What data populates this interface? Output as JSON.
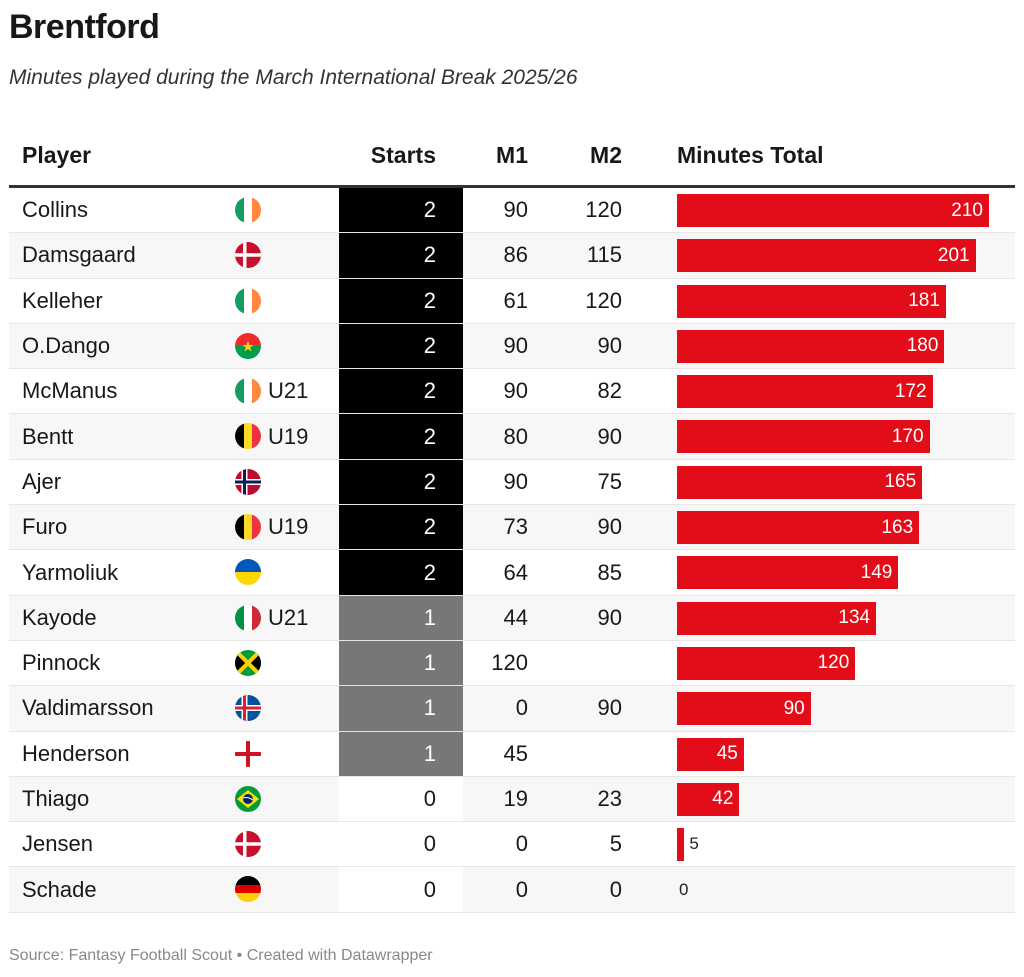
{
  "title": "Brentford",
  "subtitle": "Minutes played during the March International Break 2025/26",
  "footer": "Source: Fantasy Football Scout • Created with Datawrapper",
  "colors": {
    "bar": "#e20d18",
    "starts_2": "#000000",
    "starts_1": "#777777"
  },
  "chart_data": {
    "type": "table",
    "columns": [
      "Player",
      "Starts",
      "M1",
      "M2",
      "Minutes Total"
    ],
    "rows": [
      {
        "player": "Collins",
        "flag": "ireland",
        "tag": "",
        "starts": 2,
        "m1": "90",
        "m2": "120",
        "total": 210
      },
      {
        "player": "Damsgaard",
        "flag": "denmark",
        "tag": "",
        "starts": 2,
        "m1": "86",
        "m2": "115",
        "total": 201
      },
      {
        "player": "Kelleher",
        "flag": "ireland",
        "tag": "",
        "starts": 2,
        "m1": "61",
        "m2": "120",
        "total": 181
      },
      {
        "player": "O.Dango",
        "flag": "burkina-faso",
        "tag": "",
        "starts": 2,
        "m1": "90",
        "m2": "90",
        "total": 180
      },
      {
        "player": "McManus",
        "flag": "ireland",
        "tag": "U21",
        "starts": 2,
        "m1": "90",
        "m2": "82",
        "total": 172
      },
      {
        "player": "Bentt",
        "flag": "belgium",
        "tag": "U19",
        "starts": 2,
        "m1": "80",
        "m2": "90",
        "total": 170
      },
      {
        "player": "Ajer",
        "flag": "norway",
        "tag": "",
        "starts": 2,
        "m1": "90",
        "m2": "75",
        "total": 165
      },
      {
        "player": "Furo",
        "flag": "belgium",
        "tag": "U19",
        "starts": 2,
        "m1": "73",
        "m2": "90",
        "total": 163
      },
      {
        "player": "Yarmoliuk",
        "flag": "ukraine",
        "tag": "",
        "starts": 2,
        "m1": "64",
        "m2": "85",
        "total": 149
      },
      {
        "player": "Kayode",
        "flag": "italy",
        "tag": "U21",
        "starts": 1,
        "m1": "44",
        "m2": "90",
        "total": 134
      },
      {
        "player": "Pinnock",
        "flag": "jamaica",
        "tag": "",
        "starts": 1,
        "m1": "120",
        "m2": "",
        "total": 120
      },
      {
        "player": "Valdimarsson",
        "flag": "iceland",
        "tag": "",
        "starts": 1,
        "m1": "0",
        "m2": "90",
        "total": 90
      },
      {
        "player": "Henderson",
        "flag": "england",
        "tag": "",
        "starts": 1,
        "m1": "45",
        "m2": "",
        "total": 45
      },
      {
        "player": "Thiago",
        "flag": "brazil",
        "tag": "",
        "starts": 0,
        "m1": "19",
        "m2": "23",
        "total": 42
      },
      {
        "player": "Jensen",
        "flag": "denmark",
        "tag": "",
        "starts": 0,
        "m1": "0",
        "m2": "5",
        "total": 5
      },
      {
        "player": "Schade",
        "flag": "germany",
        "tag": "",
        "starts": 0,
        "m1": "0",
        "m2": "0",
        "total": 0
      }
    ]
  }
}
